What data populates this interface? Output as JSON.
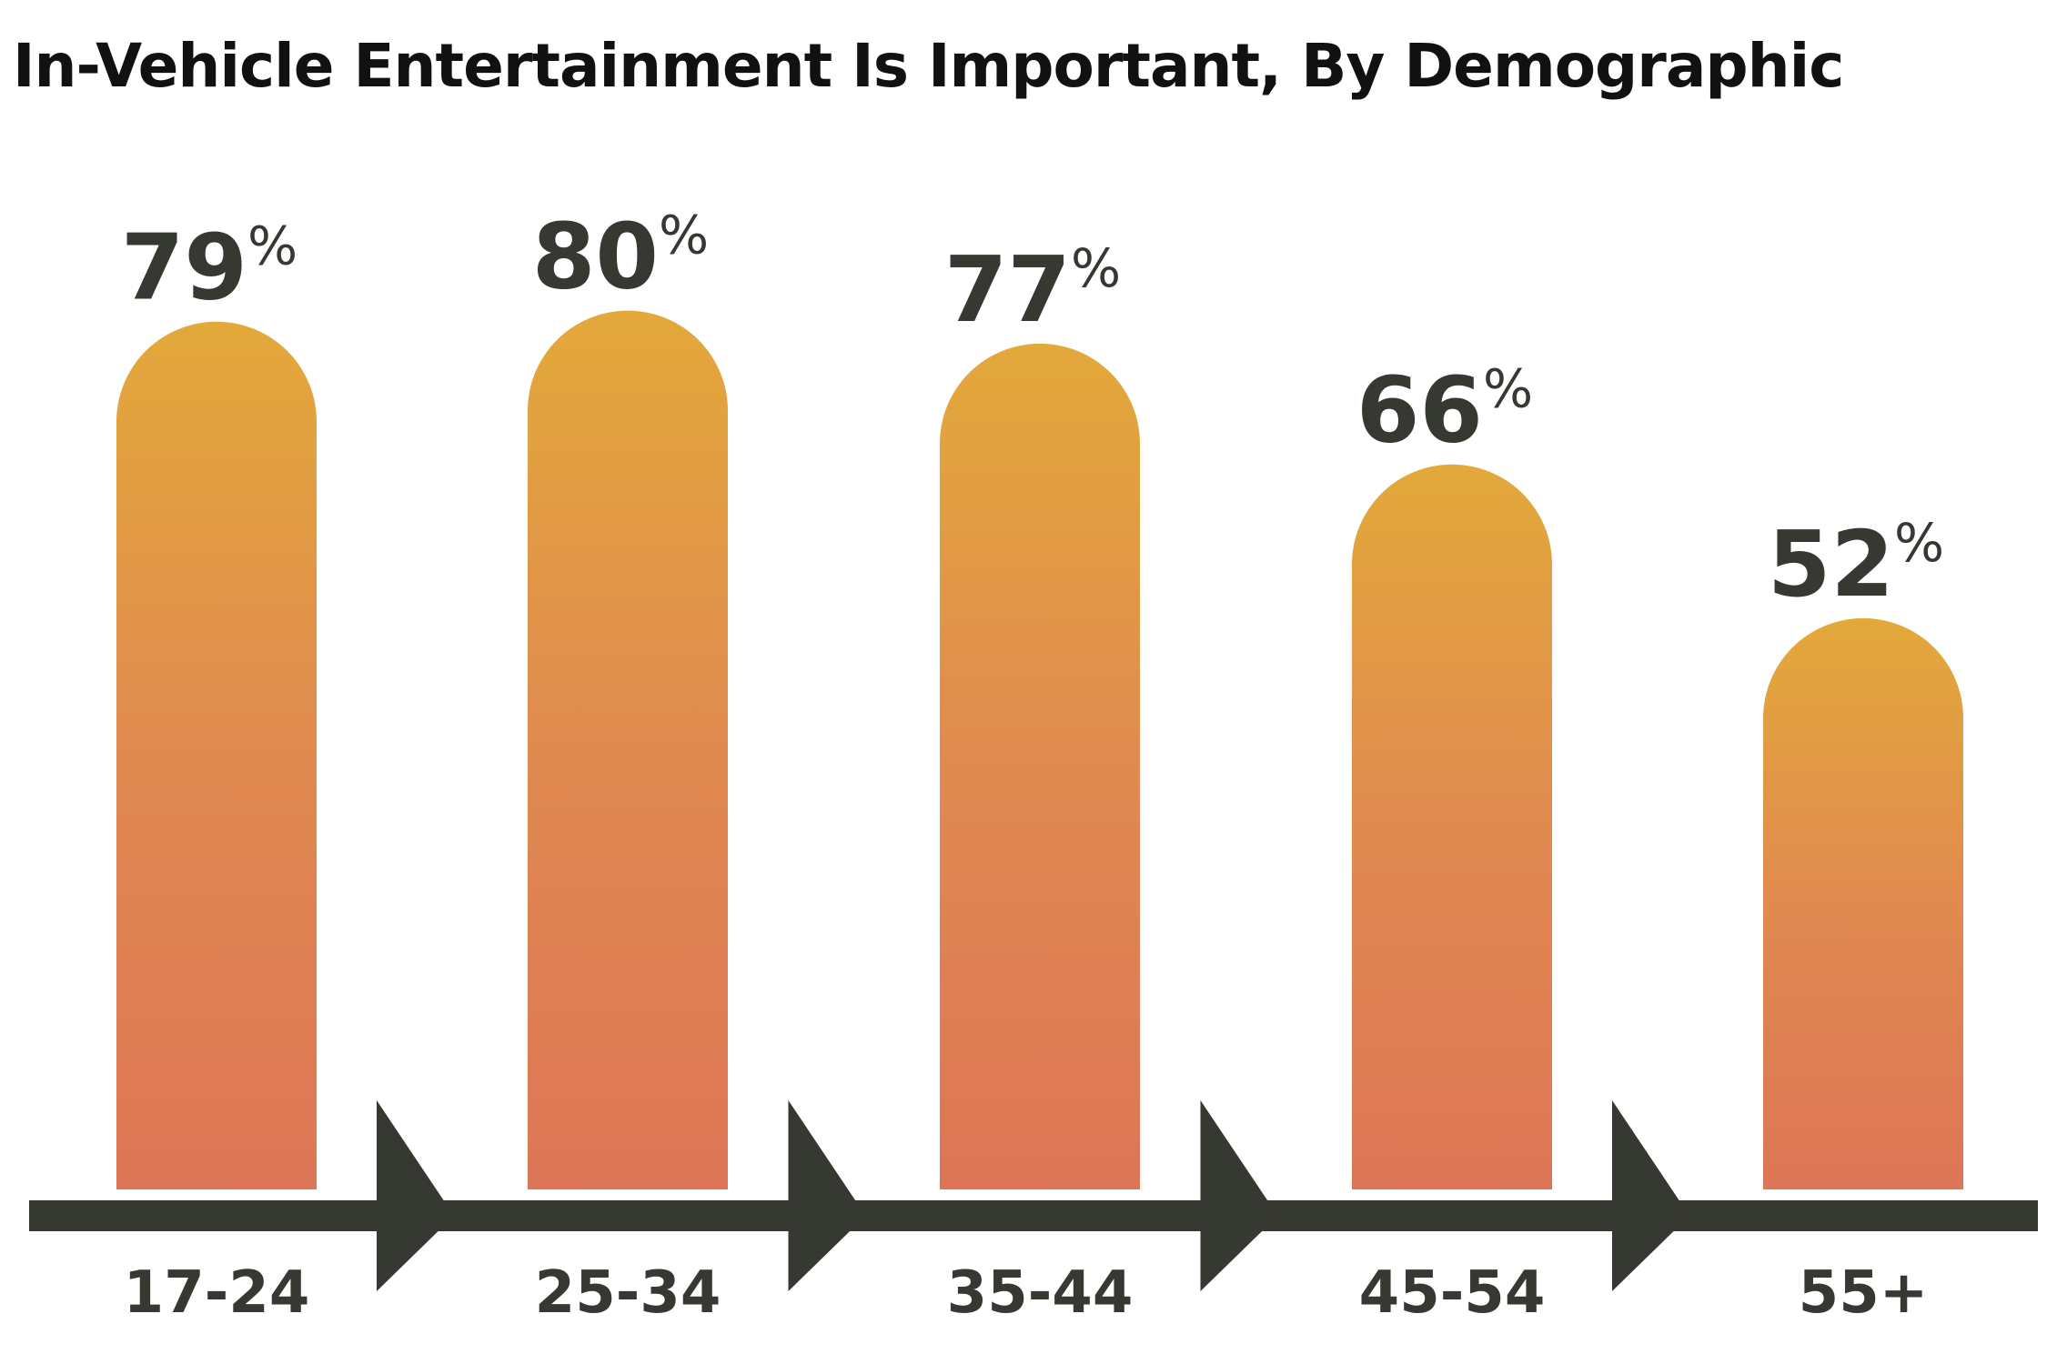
{
  "chart_data": {
    "type": "bar",
    "title": "In-Vehicle Entertainment Is Important, By Demographic",
    "categories": [
      "17-24",
      "25-34",
      "35-44",
      "45-54",
      "55+"
    ],
    "values": [
      79,
      80,
      77,
      66,
      52
    ],
    "value_labels": [
      "79",
      "80",
      "77",
      "66",
      "52"
    ],
    "value_suffix": "%",
    "ylim": [
      0,
      100
    ],
    "grid": false,
    "legend": "none",
    "colors": {
      "bar_top": "#e3a93a",
      "bar_mid": "#e08a50",
      "bar_bottom": "#dd7556",
      "axis": "#363832",
      "text": "#363832"
    }
  }
}
